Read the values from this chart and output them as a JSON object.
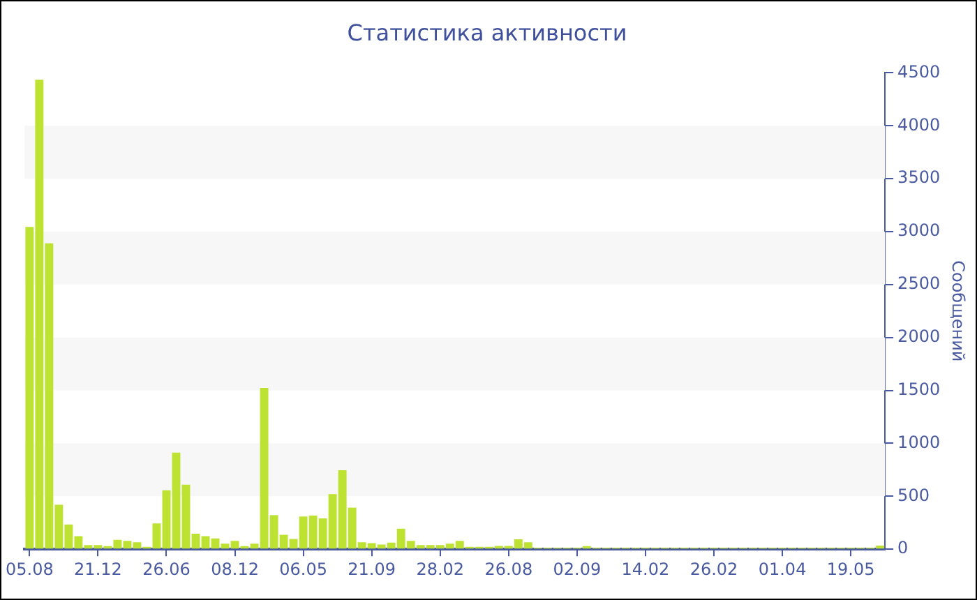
{
  "chart_data": {
    "type": "bar",
    "title": "Статистика активности",
    "ylabel": "Сообщений",
    "categories": [
      "05.08",
      null,
      null,
      null,
      null,
      null,
      null,
      "21.12",
      null,
      null,
      null,
      null,
      null,
      null,
      "26.06",
      null,
      null,
      null,
      null,
      null,
      null,
      "08.12",
      null,
      null,
      null,
      null,
      null,
      null,
      "06.05",
      null,
      null,
      null,
      null,
      null,
      null,
      "21.09",
      null,
      null,
      null,
      null,
      null,
      null,
      "28.02",
      null,
      null,
      null,
      null,
      null,
      null,
      "26.08",
      null,
      null,
      null,
      null,
      null,
      null,
      "02.09",
      null,
      null,
      null,
      null,
      null,
      null,
      "14.02",
      null,
      null,
      null,
      null,
      null,
      null,
      "26.02",
      null,
      null,
      null,
      null,
      null,
      null,
      "01.04",
      null,
      null,
      null,
      null,
      null,
      null,
      "19.05",
      null,
      null,
      null
    ],
    "values": [
      3045,
      4435,
      2890,
      420,
      234,
      124,
      40,
      40,
      30,
      88,
      79,
      66,
      22,
      243,
      556,
      913,
      609,
      146,
      124,
      102,
      53,
      79,
      30,
      53,
      1523,
      322,
      137,
      97,
      309,
      318,
      291,
      521,
      746,
      393,
      66,
      57,
      44,
      62,
      194,
      79,
      40,
      40,
      40,
      53,
      79,
      22,
      22,
      22,
      31,
      31,
      93,
      66,
      15,
      15,
      15,
      15,
      15,
      30,
      15,
      15,
      15,
      15,
      15,
      15,
      15,
      15,
      15,
      15,
      15,
      15,
      15,
      15,
      15,
      15,
      15,
      15,
      15,
      15,
      15,
      15,
      15,
      15,
      15,
      15,
      15,
      15,
      15,
      35
    ],
    "color": "#bde232",
    "ylim": [
      0,
      4500
    ],
    "yticks": [
      0,
      500,
      1000,
      1500,
      2000,
      2500,
      3000,
      3500,
      4000,
      4500
    ],
    "bands": [
      {
        "axis": "y",
        "from": 500,
        "to": 1000,
        "color": "#f7f7f7"
      },
      {
        "axis": "y",
        "from": 1500,
        "to": 2000,
        "color": "#f7f7f7"
      },
      {
        "axis": "y",
        "from": 2500,
        "to": 3000,
        "color": "#f7f7f7"
      },
      {
        "axis": "y",
        "from": 3500,
        "to": 4000,
        "color": "#f7f7f7"
      }
    ],
    "grid": false,
    "legend": false
  }
}
